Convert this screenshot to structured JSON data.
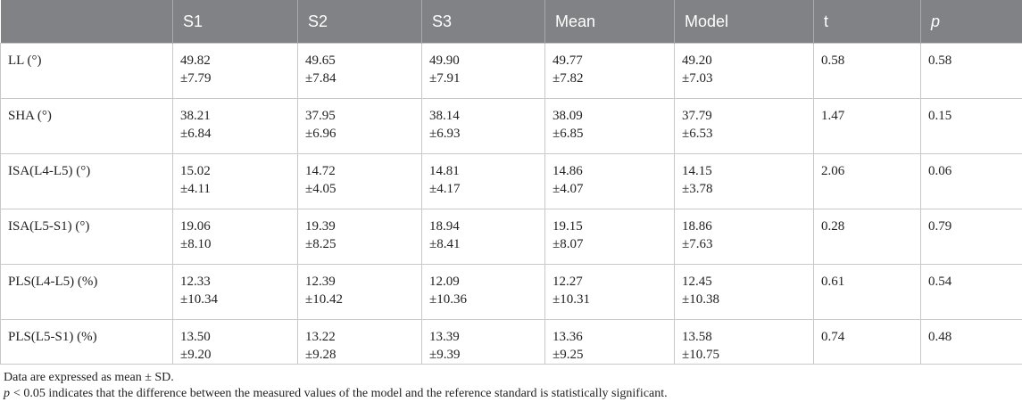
{
  "table": {
    "header": [
      "S1",
      "S2",
      "S3",
      "Mean",
      "Model",
      "t",
      "p"
    ],
    "rows": [
      {
        "label": "LL (°)",
        "cells": [
          [
            "49.82",
            "±7.79"
          ],
          [
            "49.65",
            "±7.84"
          ],
          [
            "49.90",
            "±7.91"
          ],
          [
            "49.77",
            "±7.82"
          ],
          [
            "49.20",
            "±7.03"
          ],
          [
            "0.58"
          ],
          [
            "0.58"
          ]
        ]
      },
      {
        "label": "SHA (°)",
        "cells": [
          [
            "38.21",
            "±6.84"
          ],
          [
            "37.95",
            "±6.96"
          ],
          [
            "38.14",
            "±6.93"
          ],
          [
            "38.09",
            "±6.85"
          ],
          [
            "37.79",
            "±6.53"
          ],
          [
            "1.47"
          ],
          [
            "0.15"
          ]
        ]
      },
      {
        "label": "ISA(L4-L5) (°)",
        "cells": [
          [
            "15.02",
            "±4.11"
          ],
          [
            "14.72",
            "±4.05"
          ],
          [
            "14.81",
            "±4.17"
          ],
          [
            "14.86",
            "±4.07"
          ],
          [
            "14.15",
            "±3.78"
          ],
          [
            "2.06"
          ],
          [
            "0.06"
          ]
        ]
      },
      {
        "label": "ISA(L5-S1) (°)",
        "cells": [
          [
            "19.06",
            "±8.10"
          ],
          [
            "19.39",
            "±8.25"
          ],
          [
            "18.94",
            "±8.41"
          ],
          [
            "19.15",
            "±8.07"
          ],
          [
            "18.86",
            "±7.63"
          ],
          [
            "0.28"
          ],
          [
            "0.79"
          ]
        ]
      },
      {
        "label": "PLS(L4-L5) (%)",
        "cells": [
          [
            "12.33",
            "±10.34"
          ],
          [
            "12.39",
            "±10.42"
          ],
          [
            "12.09",
            "±10.36"
          ],
          [
            "12.27",
            "±10.31"
          ],
          [
            "12.45",
            "±10.38"
          ],
          [
            "0.61"
          ],
          [
            "0.54"
          ]
        ]
      },
      {
        "label": "PLS(L5-S1) (%)",
        "cells": [
          [
            "13.50",
            "±9.20"
          ],
          [
            "13.22",
            "±9.28"
          ],
          [
            "13.39",
            "±9.39"
          ],
          [
            "13.36",
            "±9.25"
          ],
          [
            "13.58",
            "±10.75"
          ],
          [
            "0.74"
          ],
          [
            "0.48"
          ]
        ]
      }
    ]
  },
  "notes": [
    {
      "text": "Data are expressed as mean ± SD."
    },
    {
      "symbol": "p",
      "text": "< 0.05 indicates that the difference between the measured values of the model and the reference standard is statistically significant."
    }
  ]
}
